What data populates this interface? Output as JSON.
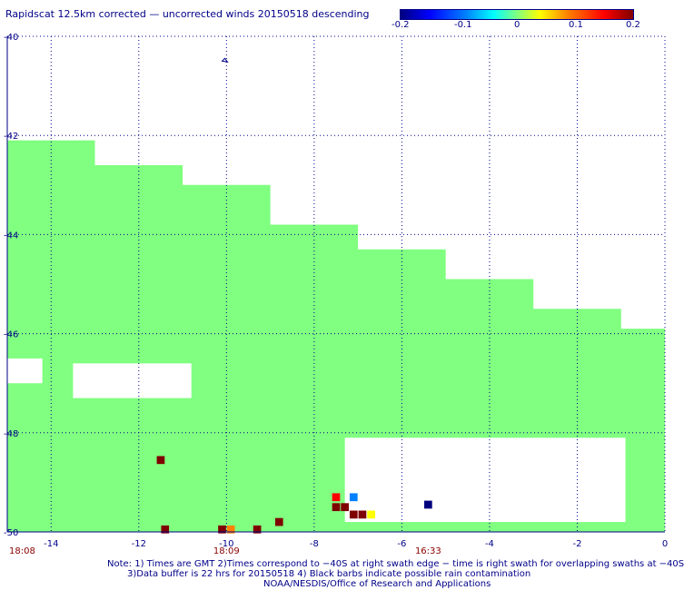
{
  "header": {
    "title": "Rapidscat 12.5km corrected — uncorrected winds 20150518 descending"
  },
  "colorbar": {
    "ticks": [
      "-0.2",
      "-0.1",
      "0",
      "0.1",
      "0.2"
    ],
    "colors": [
      "#00007f",
      "#0000ff",
      "#0080ff",
      "#00ffff",
      "#80ff80",
      "#ffff00",
      "#ff8000",
      "#ff0000",
      "#7f0000"
    ]
  },
  "chart_data": {
    "type": "heatmap",
    "title": "Rapidscat 12.5km corrected — uncorrected winds 20150518 descending",
    "xlim": [
      -15,
      0
    ],
    "ylim": [
      -50,
      -40
    ],
    "x_ticks": [
      "-14",
      "-12",
      "-10",
      "-8",
      "-6",
      "-4",
      "-2",
      "0"
    ],
    "y_ticks": [
      "-40",
      "-42",
      "-44",
      "-46",
      "-48",
      "-50"
    ],
    "times": [
      {
        "lon": -15,
        "label": "18:08"
      },
      {
        "lon": -10,
        "label": "18:09"
      },
      {
        "lon": -5.4,
        "label": "16:33"
      }
    ],
    "colormap_range": [
      -0.2,
      0.2
    ],
    "background_value": 0,
    "background_color": "#80ff80",
    "swath_upper_edge": [
      {
        "lon": -15.0,
        "lat": -42.1
      },
      {
        "lon": -13.0,
        "lat": -42.6
      },
      {
        "lon": -11.0,
        "lat": -43.0
      },
      {
        "lon": -9.0,
        "lat": -43.8
      },
      {
        "lon": -7.0,
        "lat": -44.3
      },
      {
        "lon": -5.0,
        "lat": -44.9
      },
      {
        "lon": -3.0,
        "lat": -45.5
      },
      {
        "lon": -1.0,
        "lat": -45.9
      },
      {
        "lon": 0.0,
        "lat": -46.1
      }
    ],
    "no_data_regions": [
      {
        "lon_min": -13.5,
        "lon_max": -10.8,
        "lat_min": -47.3,
        "lat_max": -46.6
      },
      {
        "lon_min": -7.3,
        "lon_max": -0.9,
        "lat_min": -49.8,
        "lat_max": -48.1
      },
      {
        "lon_min": -15.0,
        "lon_max": -14.2,
        "lat_min": -47.0,
        "lat_max": -46.5
      }
    ],
    "anomaly_cells": [
      {
        "lon": -11.5,
        "lat": -48.55,
        "value": 0.2
      },
      {
        "lon": -11.4,
        "lat": -49.95,
        "value": 0.2
      },
      {
        "lon": -10.1,
        "lat": -49.95,
        "value": 0.2
      },
      {
        "lon": -9.9,
        "lat": -49.95,
        "value": 0.12
      },
      {
        "lon": -9.3,
        "lat": -49.95,
        "value": 0.2
      },
      {
        "lon": -8.8,
        "lat": -49.8,
        "value": 0.2
      },
      {
        "lon": -7.5,
        "lat": -49.3,
        "value": 0.17
      },
      {
        "lon": -7.5,
        "lat": -49.5,
        "value": 0.2
      },
      {
        "lon": -7.3,
        "lat": -49.5,
        "value": 0.2
      },
      {
        "lon": -7.1,
        "lat": -49.65,
        "value": 0.2
      },
      {
        "lon": -6.9,
        "lat": -49.65,
        "value": 0.2
      },
      {
        "lon": -7.1,
        "lat": -49.3,
        "value": -0.08
      },
      {
        "lon": -6.7,
        "lat": -49.65,
        "value": 0.05
      },
      {
        "lon": -5.4,
        "lat": -49.45,
        "value": -0.2
      }
    ]
  },
  "footer": {
    "line1": "Note: 1) Times are GMT 2)Times correspond to −40S at right swath edge − time is right swath for overlapping swaths at −40S",
    "line2": "3)Data buffer is 22 hrs for 20150518 4) Black barbs indicate possible rain contamination",
    "line3": "NOAA/NESDIS/Office of Research and Applications"
  }
}
